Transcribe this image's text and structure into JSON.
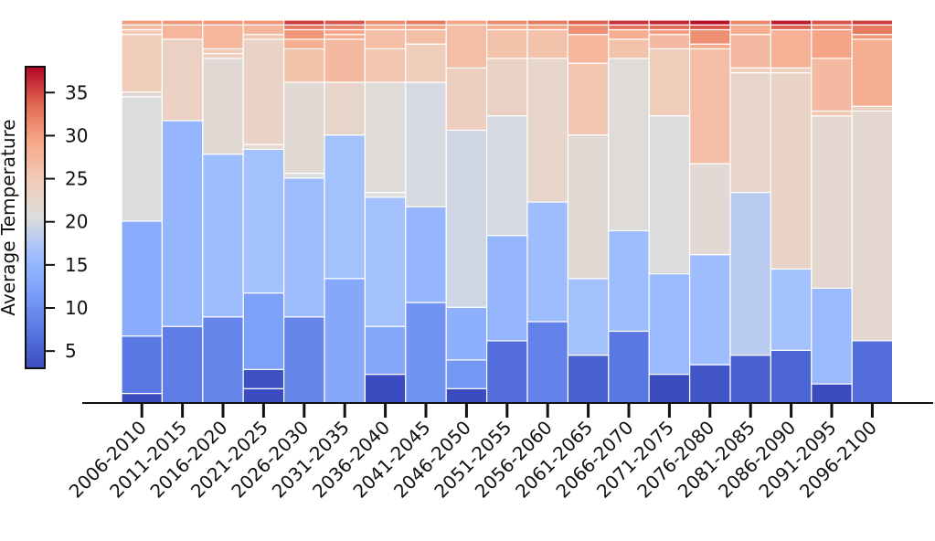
{
  "chart_data": {
    "type": "bar",
    "stacked": true,
    "normalized": true,
    "colormap": "coolwarm",
    "categories": [
      "2006-2010",
      "2011-2015",
      "2016-2020",
      "2021-2025",
      "2026-2030",
      "2031-2035",
      "2036-2040",
      "2041-2045",
      "2046-2050",
      "2051-2055",
      "2056-2060",
      "2061-2065",
      "2066-2070",
      "2071-2075",
      "2076-2080",
      "2081-2085",
      "2086-2090",
      "2091-2095",
      "2096-2100"
    ],
    "segments": [
      [
        [
          1,
          0.005,
          1.0
        ],
        [
          7,
          0.045,
          7.5
        ],
        [
          19,
          0.27,
          13.5
        ],
        [
          32,
          0.31,
          20.5
        ],
        [
          32.5,
          0.01,
          22.0
        ],
        [
          38.5,
          0.14,
          24.5
        ],
        [
          39,
          0.005,
          25.0
        ],
        [
          39.5,
          0.02,
          27.0
        ]
      ],
      [
        [
          8,
          0.02,
          8.0
        ],
        [
          29.5,
          0.72,
          15.0
        ],
        [
          38,
          0.19,
          23.5
        ],
        [
          39.5,
          0.04,
          27.5
        ]
      ],
      [
        [
          9,
          0.02,
          9.0
        ],
        [
          26,
          0.37,
          16.0
        ],
        [
          36,
          0.255,
          21.5
        ],
        [
          36.5,
          0.01,
          24.0
        ],
        [
          37,
          0.005,
          25.0
        ],
        [
          39.5,
          0.055,
          27.5
        ]
      ],
      [
        [
          1.5,
          0.005,
          1.5
        ],
        [
          3.5,
          0.005,
          3.5
        ],
        [
          11.5,
          0.19,
          12.0
        ],
        [
          26.5,
          0.36,
          16.5
        ],
        [
          27,
          0.005,
          22.0
        ],
        [
          38,
          0.27,
          23.0
        ],
        [
          38.5,
          0.005,
          25.5
        ],
        [
          39.5,
          0.025,
          27.5
        ]
      ],
      [
        [
          9,
          0.02,
          9.0
        ],
        [
          23.5,
          0.35,
          16.0
        ],
        [
          24,
          0.005,
          20.5
        ],
        [
          33.5,
          0.23,
          21.5
        ],
        [
          37,
          0.085,
          26.0
        ],
        [
          38,
          0.025,
          28.5
        ],
        [
          39,
          0.02,
          30.5
        ],
        [
          39.5,
          0.005,
          32.5
        ]
      ],
      [
        [
          13,
          0.03,
          13.0
        ],
        [
          28,
          0.35,
          16.5
        ],
        [
          33.5,
          0.135,
          22.5
        ],
        [
          38,
          0.105,
          27.0
        ],
        [
          38.5,
          0.005,
          28.5
        ],
        [
          39,
          0.02,
          29.5
        ],
        [
          39.5,
          0.005,
          31.5
        ]
      ],
      [
        [
          3,
          0.005,
          3.0
        ],
        [
          8,
          0.12,
          13.0
        ],
        [
          21.5,
          0.33,
          16.5
        ],
        [
          22,
          0.005,
          20.5
        ],
        [
          33.5,
          0.28,
          21.0
        ],
        [
          37,
          0.075,
          25.5
        ],
        [
          39,
          0.05,
          26.5
        ],
        [
          39.5,
          0.005,
          28.5
        ]
      ],
      [
        [
          10.5,
          0.02,
          10.5
        ],
        [
          20.5,
          0.24,
          15.0
        ],
        [
          33.5,
          0.315,
          20.0
        ],
        [
          37.5,
          0.095,
          24.5
        ],
        [
          39,
          0.035,
          26.5
        ],
        [
          39.5,
          0.01,
          29.5
        ]
      ],
      [
        [
          1.5,
          0.005,
          1.5
        ],
        [
          4.5,
          0.07,
          11.0
        ],
        [
          10,
          0.135,
          14.0
        ],
        [
          28.5,
          0.44,
          19.5
        ],
        [
          35,
          0.16,
          24.0
        ],
        [
          39.5,
          0.1,
          26.5
        ]
      ],
      [
        [
          6.5,
          0.03,
          6.5
        ],
        [
          17.5,
          0.27,
          15.0
        ],
        [
          30,
          0.3,
          20.0
        ],
        [
          36,
          0.145,
          23.5
        ],
        [
          39,
          0.065,
          26.0
        ],
        [
          39.5,
          0.01,
          28.5
        ]
      ],
      [
        [
          8.5,
          0.03,
          8.5
        ],
        [
          21,
          0.3,
          16.0
        ],
        [
          36,
          0.36,
          22.5
        ],
        [
          39,
          0.07,
          26.0
        ],
        [
          39.5,
          0.005,
          29.5
        ]
      ],
      [
        [
          5,
          0.03,
          5.0
        ],
        [
          13,
          0.2,
          16.5
        ],
        [
          28,
          0.36,
          21.5
        ],
        [
          35.5,
          0.18,
          25.5
        ],
        [
          38.5,
          0.07,
          27.5
        ],
        [
          39.5,
          0.03,
          31.0
        ]
      ],
      [
        [
          7.5,
          0.03,
          7.5
        ],
        [
          18,
          0.25,
          16.0
        ],
        [
          36,
          0.43,
          21.0
        ],
        [
          38,
          0.05,
          26.0
        ],
        [
          39,
          0.02,
          28.5
        ],
        [
          39.5,
          0.005,
          33.0
        ]
      ],
      [
        [
          3,
          0.005,
          3.0
        ],
        [
          13.5,
          0.25,
          15.5
        ],
        [
          30,
          0.395,
          20.5
        ],
        [
          37,
          0.165,
          24.5
        ],
        [
          38.5,
          0.04,
          27.0
        ],
        [
          39,
          0.01,
          30.0
        ],
        [
          39.5,
          0.005,
          33.5
        ]
      ],
      [
        [
          4,
          0.005,
          4.0
        ],
        [
          15.5,
          0.28,
          16.0
        ],
        [
          25,
          0.23,
          21.5
        ],
        [
          37,
          0.29,
          26.5
        ],
        [
          37.5,
          0.01,
          29.0
        ],
        [
          39,
          0.04,
          31.0
        ],
        [
          39.5,
          0.005,
          34.5
        ]
      ],
      [
        [
          5,
          0.03,
          5.0
        ],
        [
          22,
          0.4,
          18.0
        ],
        [
          34.5,
          0.3,
          22.5
        ],
        [
          35,
          0.005,
          24.5
        ],
        [
          38.5,
          0.085,
          27.0
        ],
        [
          39.5,
          0.025,
          28.5
        ]
      ],
      [
        [
          5.5,
          0.03,
          5.5
        ],
        [
          14,
          0.2,
          16.5
        ],
        [
          34.5,
          0.49,
          23.0
        ],
        [
          35,
          0.005,
          24.0
        ],
        [
          39,
          0.09,
          28.0
        ],
        [
          39.5,
          0.01,
          34.0
        ]
      ],
      [
        [
          2,
          0.005,
          2.0
        ],
        [
          12,
          0.24,
          15.5
        ],
        [
          30,
          0.43,
          22.0
        ],
        [
          30.5,
          0.005,
          25.5
        ],
        [
          36,
          0.135,
          27.0
        ],
        [
          39,
          0.07,
          29.5
        ],
        [
          39.5,
          0.005,
          31.5
        ]
      ],
      [
        [
          6.5,
          0.03,
          6.5
        ],
        [
          30.5,
          0.575,
          22.0
        ],
        [
          31,
          0.005,
          24.0
        ],
        [
          38,
          0.17,
          28.5
        ],
        [
          38.5,
          0.005,
          30.5
        ],
        [
          39.5,
          0.025,
          32.5
        ]
      ]
    ],
    "title": "",
    "xlabel": "",
    "ylabel": "",
    "colorbar": {
      "label": "Average Temperature",
      "ticks": [
        5,
        10,
        15,
        20,
        25,
        30,
        35
      ],
      "range": [
        3,
        38
      ]
    },
    "grid": false
  }
}
